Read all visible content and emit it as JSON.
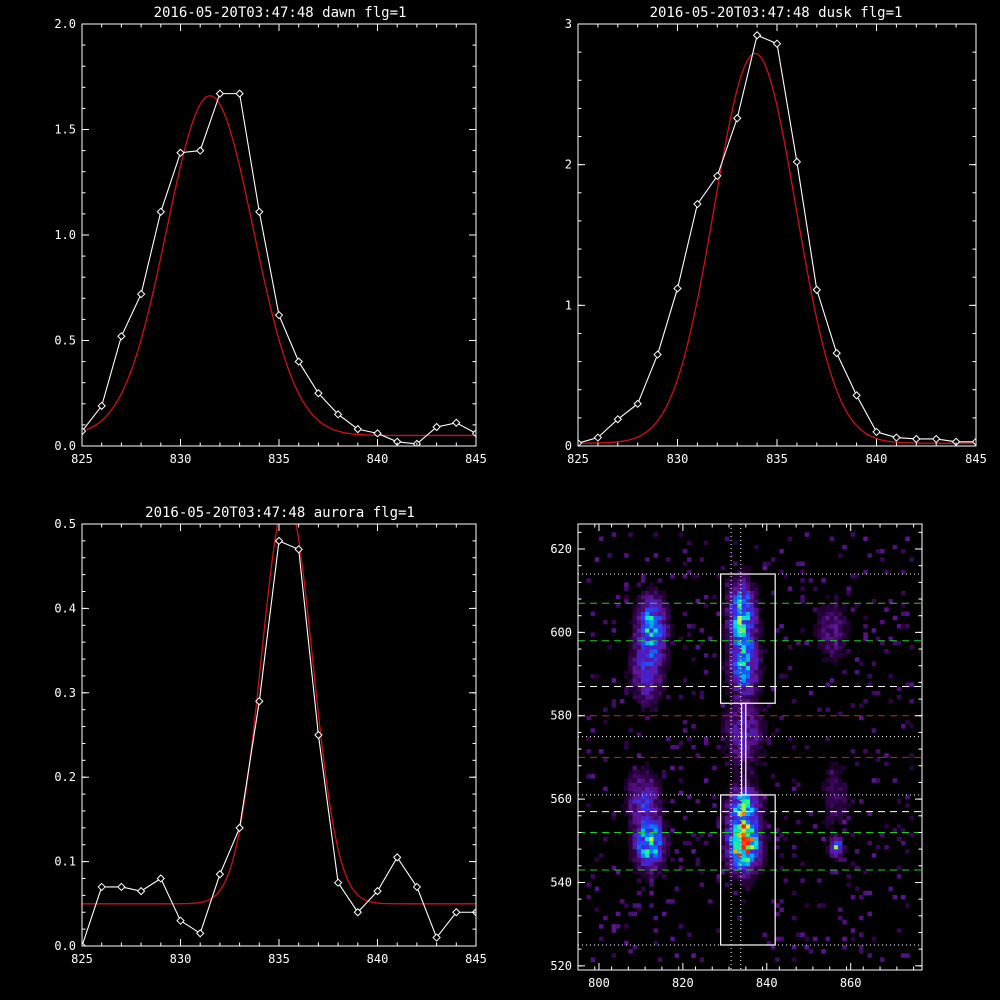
{
  "chart_data": [
    {
      "id": "dawn",
      "type": "line",
      "title": "2016-05-20T03:47:48 dawn flg=1",
      "xlim": [
        825,
        845
      ],
      "ylim": [
        0,
        2.0
      ],
      "xticks": [
        825,
        830,
        835,
        840,
        845
      ],
      "xtick_labels": [
        "825",
        "830",
        "835",
        "840",
        "845"
      ],
      "yticks": [
        0,
        0.5,
        1.0,
        1.5,
        2.0
      ],
      "ytick_labels": [
        "0.0",
        "0.5",
        "1.0",
        "1.5",
        "2.0"
      ],
      "colors": {
        "data": "#ffffff",
        "fit": "#d01010"
      },
      "data": {
        "x": [
          825,
          826,
          827,
          828,
          829,
          830,
          831,
          832,
          833,
          834,
          835,
          836,
          837,
          838,
          839,
          840,
          841,
          842,
          843,
          844,
          845
        ],
        "y": [
          0.07,
          0.19,
          0.52,
          0.72,
          1.11,
          1.39,
          1.4,
          1.67,
          1.67,
          1.11,
          0.62,
          0.4,
          0.25,
          0.15,
          0.08,
          0.06,
          0.02,
          0.01,
          0.09,
          0.11,
          0.06
        ]
      },
      "fit": {
        "amplitude": 1.61,
        "center": 831.5,
        "sigma": 2.2,
        "offset": 0.05
      }
    },
    {
      "id": "dusk",
      "type": "line",
      "title": "2016-05-20T03:47:48 dusk flg=1",
      "xlim": [
        825,
        845
      ],
      "ylim": [
        0,
        3.0
      ],
      "xticks": [
        825,
        830,
        835,
        840,
        845
      ],
      "xtick_labels": [
        "825",
        "830",
        "835",
        "840",
        "845"
      ],
      "yticks": [
        0,
        1,
        2,
        3
      ],
      "ytick_labels": [
        "0",
        "1",
        "2",
        "3"
      ],
      "colors": {
        "data": "#ffffff",
        "fit": "#d01010"
      },
      "data": {
        "x": [
          825,
          826,
          827,
          828,
          829,
          830,
          831,
          832,
          833,
          834,
          835,
          836,
          837,
          838,
          839,
          840,
          841,
          842,
          843,
          844,
          845
        ],
        "y": [
          0.02,
          0.06,
          0.19,
          0.3,
          0.65,
          1.12,
          1.72,
          1.92,
          2.33,
          2.92,
          2.86,
          2.02,
          1.11,
          0.66,
          0.36,
          0.1,
          0.06,
          0.05,
          0.05,
          0.03,
          0.03
        ]
      },
      "fit": {
        "amplitude": 2.77,
        "center": 833.9,
        "sigma": 2.05,
        "offset": 0.02
      }
    },
    {
      "id": "aurora",
      "type": "line",
      "title": "2016-05-20T03:47:48 aurora flg=1",
      "xlim": [
        825,
        845
      ],
      "ylim": [
        0,
        0.5
      ],
      "xticks": [
        825,
        830,
        835,
        840,
        845
      ],
      "xtick_labels": [
        "825",
        "830",
        "835",
        "840",
        "845"
      ],
      "yticks": [
        0,
        0.1,
        0.2,
        0.3,
        0.4,
        0.5
      ],
      "ytick_labels": [
        "0.0",
        "0.1",
        "0.2",
        "0.3",
        "0.4",
        "0.5"
      ],
      "colors": {
        "data": "#ffffff",
        "fit": "#d01010"
      },
      "data": {
        "x": [
          825,
          826,
          827,
          828,
          829,
          830,
          831,
          832,
          833,
          834,
          835,
          836,
          837,
          838,
          839,
          840,
          841,
          842,
          843,
          844,
          845
        ],
        "y": [
          0.0,
          0.07,
          0.07,
          0.065,
          0.08,
          0.03,
          0.015,
          0.085,
          0.14,
          0.29,
          0.48,
          0.47,
          0.25,
          0.075,
          0.04,
          0.065,
          0.105,
          0.07,
          0.01,
          0.04,
          0.04
        ]
      },
      "fit": {
        "amplitude": 0.48,
        "center": 835.4,
        "sigma": 1.3,
        "offset": 0.05
      }
    },
    {
      "id": "image",
      "type": "heatmap",
      "title": "",
      "xlim": [
        795,
        877
      ],
      "ylim": [
        519,
        626
      ],
      "xticks": [
        800,
        820,
        840,
        860
      ],
      "xtick_labels": [
        "800",
        "820",
        "840",
        "860"
      ],
      "yticks": [
        520,
        540,
        560,
        580,
        600,
        620
      ],
      "ytick_labels": [
        "520",
        "540",
        "560",
        "580",
        "600",
        "620"
      ],
      "colors": {
        "green": "#22cc22",
        "red": "#cc2020",
        "white": "#ffffff"
      },
      "hlines": [
        {
          "y": 614,
          "style": "dotted",
          "color": "white"
        },
        {
          "y": 607,
          "style": "dashed",
          "color": "green"
        },
        {
          "y": 598,
          "style": "dashed",
          "color": "green"
        },
        {
          "y": 587,
          "style": "dashed",
          "color": "white"
        },
        {
          "y": 580,
          "style": "dashed",
          "color": "red"
        },
        {
          "y": 575,
          "style": "dotted",
          "color": "white"
        },
        {
          "y": 570,
          "style": "dashed",
          "color": "red"
        },
        {
          "y": 561,
          "style": "dotted",
          "color": "white"
        },
        {
          "y": 557,
          "style": "dashed",
          "color": "white"
        },
        {
          "y": 552,
          "style": "dashed",
          "color": "green"
        },
        {
          "y": 543,
          "style": "dashed",
          "color": "green"
        },
        {
          "y": 525,
          "style": "dotted",
          "color": "white"
        }
      ],
      "vlines": [
        {
          "x": 831.5,
          "style": "dotted",
          "color": "white"
        },
        {
          "x": 833.8,
          "style": "dotted",
          "color": "white"
        }
      ],
      "boxes": [
        {
          "x0": 829,
          "x1": 842,
          "y0": 583,
          "y1": 614,
          "color": "white"
        },
        {
          "x0": 829,
          "x1": 842,
          "y0": 525,
          "y1": 561,
          "color": "white"
        },
        {
          "x0": 834,
          "x1": 835,
          "y0": 561,
          "y1": 583,
          "color": "white"
        }
      ],
      "blobs": [
        {
          "x": 812,
          "y": 601,
          "sx": 2.2,
          "sy": 4.5,
          "a": 0.55
        },
        {
          "x": 811,
          "y": 590,
          "sx": 2.5,
          "sy": 5,
          "a": 0.3
        },
        {
          "x": 833.5,
          "y": 604,
          "sx": 2.0,
          "sy": 5,
          "a": 0.6
        },
        {
          "x": 834,
          "y": 592,
          "sx": 2.2,
          "sy": 5,
          "a": 0.5
        },
        {
          "x": 834,
          "y": 575,
          "sx": 3,
          "sy": 5,
          "a": 0.25
        },
        {
          "x": 811.5,
          "y": 549,
          "sx": 2.2,
          "sy": 4,
          "a": 0.65
        },
        {
          "x": 810,
          "y": 560,
          "sx": 2.5,
          "sy": 4,
          "a": 0.3
        },
        {
          "x": 834,
          "y": 549,
          "sx": 2.4,
          "sy": 4.2,
          "a": 1.0
        },
        {
          "x": 834,
          "y": 558,
          "sx": 2.2,
          "sy": 3,
          "a": 0.55
        },
        {
          "x": 856,
          "y": 548,
          "sx": 1.0,
          "sy": 1.4,
          "a": 0.55
        },
        {
          "x": 855,
          "y": 600,
          "sx": 2.5,
          "sy": 5,
          "a": 0.18
        },
        {
          "x": 856,
          "y": 560,
          "sx": 2.5,
          "sy": 6,
          "a": 0.12
        }
      ]
    }
  ]
}
